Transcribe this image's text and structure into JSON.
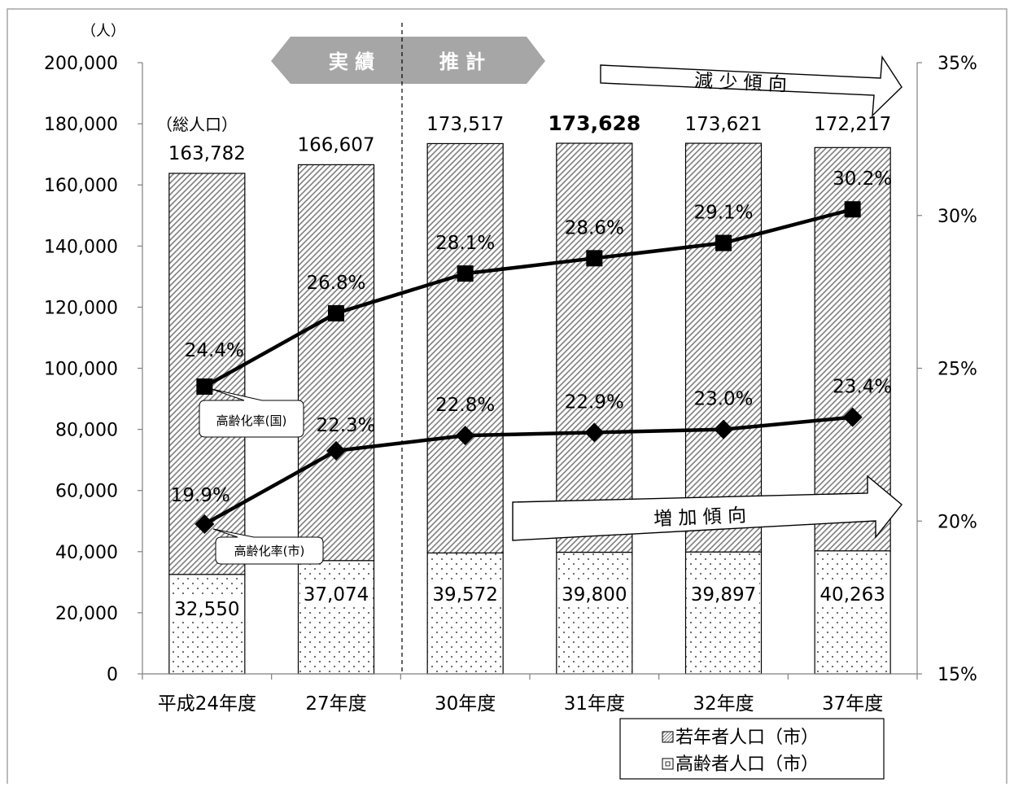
{
  "chart_data": {
    "type": "bar",
    "subtype": "stacked bar with line overlay on secondary axis",
    "categories": [
      "平成24年度",
      "27年度",
      "30年度",
      "31年度",
      "32年度",
      "37年度"
    ],
    "totals": [
      163782,
      166607,
      173517,
      173628,
      173621,
      172217
    ],
    "total_labels": [
      "163,782",
      "166,607",
      "173,517",
      "173,628",
      "173,621",
      "172,217"
    ],
    "total_series_label": "（総人口）",
    "highlight_total_index": 3,
    "series": [
      {
        "name": "高齢者人口（市）",
        "pattern": "dots",
        "values": [
          32550,
          37074,
          39572,
          39800,
          39897,
          40263
        ],
        "value_labels": [
          "32,550",
          "37,074",
          "39,572",
          "39,800",
          "39,897",
          "40,263"
        ]
      },
      {
        "name": "若年者人口（市）",
        "pattern": "diagonal-hatch",
        "values": [
          131232,
          129533,
          133945,
          133828,
          133724,
          131954
        ]
      }
    ],
    "lines": [
      {
        "name": "高齢化率（国）",
        "marker": "square",
        "values": [
          24.4,
          26.8,
          28.1,
          28.6,
          29.1,
          30.2
        ],
        "value_labels": [
          "24.4%",
          "26.8%",
          "28.1%",
          "28.6%",
          "29.1%",
          "30.2%"
        ],
        "callout": "高齢化率(国)"
      },
      {
        "name": "高齢化率（市）",
        "marker": "diamond",
        "values": [
          19.9,
          22.3,
          22.8,
          22.9,
          23.0,
          23.4
        ],
        "value_labels": [
          "19.9%",
          "22.3%",
          "22.8%",
          "22.9%",
          "23.0%",
          "23.4%"
        ],
        "callout": "高齢化率(市)"
      }
    ],
    "y_axis": {
      "unit_label": "（人）",
      "min": 0,
      "max": 200000,
      "step": 20000,
      "tick_labels": [
        "0",
        "20,000",
        "40,000",
        "60,000",
        "80,000",
        "100,000",
        "120,000",
        "140,000",
        "160,000",
        "180,000",
        "200,000"
      ]
    },
    "y2_axis": {
      "min": 15,
      "max": 35,
      "step": 5,
      "tick_labels": [
        "15%",
        "20%",
        "25%",
        "30%",
        "35%"
      ]
    },
    "annotations": {
      "actual_label": "実 績",
      "estimate_label": "推 計",
      "divider_between": [
        1,
        2
      ],
      "decrease_arrow": "減 少 傾 向",
      "increase_arrow": "増 加 傾 向"
    },
    "legend": {
      "position": "bottom-right",
      "items": [
        "若年者人口（市）",
        "高齢者人口（市）"
      ]
    },
    "grid": false,
    "colors": {
      "bar_stroke": "#000000",
      "line": "#000000",
      "hatch": "#7f7f7f",
      "dots": "#606060",
      "banner_fill": "#a6a6a6",
      "frame": "#a6a6a6"
    }
  }
}
